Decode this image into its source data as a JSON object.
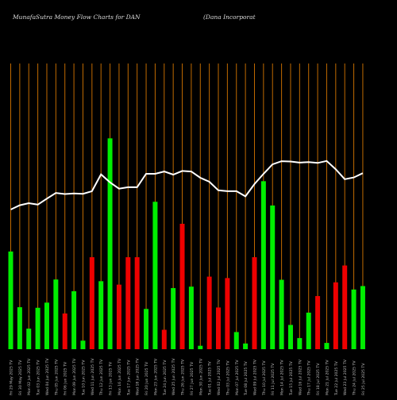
{
  "header": {
    "left_title": "MunafaSutra  Money Flow  Charts for DAN",
    "right_title": "(Dana  Incorporat"
  },
  "chart_data": {
    "type": "bar",
    "title": "MunafaSutra Money Flow Charts for DAN",
    "subtitle": "(Dana Incorporat",
    "xlabel": "",
    "ylabel": "",
    "ylim": [
      0,
      100
    ],
    "grid": "vertical",
    "colors": {
      "up": "#00ee00",
      "down": "#ee0000",
      "line": "#ffffff",
      "grid": "#c06a00",
      "background": "#000000"
    },
    "categories": [
      "29/05/2025",
      "30/05/2025",
      "02/06/2025",
      "03/06/2025",
      "04/06/2025",
      "05/06/2025",
      "06/06/2025",
      "09/06/2025",
      "10/06/2025",
      "11/06/2025",
      "12/06/2025",
      "13/06/2025",
      "16/06/2025",
      "17/06/2025",
      "18/06/2025",
      "20/06/2025",
      "23/06/2025",
      "24/06/2025",
      "25/06/2025",
      "26/06/2025",
      "27/06/2025",
      "30/06/2025",
      "01/07/2025",
      "02/07/2025",
      "03/07/2025",
      "07/07/2025",
      "08/07/2025",
      "09/07/2025",
      "10/07/2025",
      "11/07/2025",
      "14/07/2025",
      "15/07/2025",
      "16/07/2025",
      "17/07/2025",
      "18/07/2025",
      "21/07/2025",
      "22/07/2025",
      "23/07/2025",
      "24/07/2025",
      "25/07/2025"
    ],
    "tick_labels": [
      "Fri 29 May 2025 TV",
      "Fri 30 May 2025 TV",
      "Mon 02 Jun 2025 TV",
      "Tue 03 Jun 2025 TV",
      "Wed 04 Jun 2025 TV",
      "Thu 05 Jun 2025 TV",
      "Fri 06 Jun 2025 TV",
      "Mon 09 Jun 2025 TV",
      "Tue 10 Jun 2025 TV",
      "Wed 11 Jun 2025 TV",
      "Thu 12 Jun 2025 TV",
      "Fri 13 Jun 2025 TV",
      "Mon 16 Jun 2025 TV",
      "Tue 17 Jun 2025 TV",
      "Wed 18 Jun 2025 TV",
      "Fri 20 Jun 2025 TV",
      "Mon 23 Jun 2025 TV",
      "Tue 24 Jun 2025 TV",
      "Wed 25 Jun 2025 TV",
      "Thu 26 Jun 2025 TV",
      "Fri 27 Jun 2025 TV",
      "Mon 30 Jun 2025 TV",
      "Tue 01 Jul 2025 TV",
      "Wed 02 Jul 2025 TV",
      "Thu 03 Jul 2025 TV",
      "Mon 07 Jul 2025 TV",
      "Tue 08 Jul 2025 TV",
      "Wed 09 Jul 2025 TV",
      "Thu 10 Jul 2025 TV",
      "Fri 11 Jul 2025 TV",
      "Mon 14 Jul 2025 TV",
      "Tue 15 Jul 2025 TV",
      "Wed 16 Jul 2025 TV",
      "Thu 17 Jul 2025 TV",
      "Fri 18 Jul 2025 TV",
      "Mon 21 Jul 2025 TV",
      "Tue 22 Jul 2025 TV",
      "Wed 23 Jul 2025 TV",
      "Thu 24 Jul 2025 TV",
      "Fri 25 Jul 2025 TV"
    ],
    "series": [
      {
        "kind": "bars",
        "values": [
          34.2,
          14.7,
          7.2,
          14.5,
          16.3,
          24.4,
          12.5,
          20.3,
          3.0,
          32.2,
          23.8,
          73.8,
          22.6,
          32.2,
          32.2,
          14.1,
          51.6,
          6.8,
          21.4,
          43.9,
          21.9,
          1.2,
          25.4,
          14.6,
          24.9,
          6.0,
          2.0,
          32.2,
          58.8,
          50.3,
          24.3,
          8.5,
          3.9,
          12.8,
          18.6,
          2.2,
          23.4,
          29.3,
          20.9,
          22.1
        ],
        "direction": [
          "up",
          "up",
          "up",
          "up",
          "up",
          "up",
          "down",
          "up",
          "up",
          "down",
          "up",
          "up",
          "down",
          "down",
          "down",
          "up",
          "up",
          "down",
          "up",
          "down",
          "up",
          "up",
          "down",
          "down",
          "down",
          "up",
          "up",
          "down",
          "up",
          "up",
          "up",
          "up",
          "up",
          "up",
          "down",
          "up",
          "down",
          "down",
          "up",
          "up"
        ]
      },
      {
        "kind": "line",
        "values": [
          48.9,
          50.4,
          51.1,
          50.6,
          52.7,
          54.7,
          54.3,
          54.5,
          54.4,
          55.3,
          61.2,
          58.4,
          56.2,
          56.7,
          56.7,
          61.4,
          61.4,
          62.2,
          61.1,
          62.4,
          62.2,
          60.0,
          58.6,
          55.6,
          55.3,
          55.3,
          53.5,
          57.8,
          61.4,
          64.7,
          65.8,
          65.7,
          65.3,
          65.5,
          65.2,
          65.9,
          63.0,
          59.5,
          60.1,
          61.6
        ]
      }
    ]
  }
}
